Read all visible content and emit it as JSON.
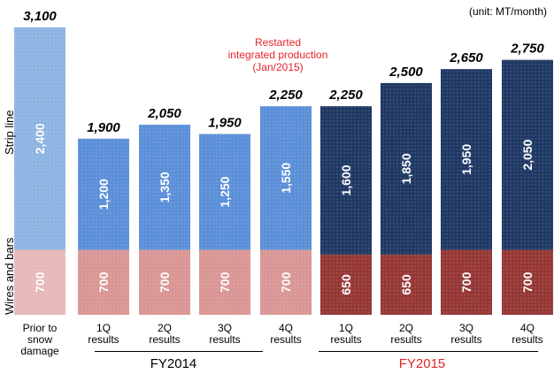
{
  "unit_label": "(unit: MT/month)",
  "annotation": [
    "Restarted",
    "integrated production",
    "(Jan/2015)"
  ],
  "y_labels": {
    "upper": "Strip line",
    "lower": "Wires and bars"
  },
  "groups": [
    {
      "label": "FY2014",
      "color": "#000000"
    },
    {
      "label": "FY2015",
      "color": "#e8222b"
    }
  ],
  "colors": {
    "strip_prior": "#8db4e2",
    "strip_fy2014": "#5b8fd8",
    "strip_fy2015": "#1f3864",
    "wires_prior": "#e6b8b7",
    "wires_fy2014": "#d99694",
    "wires_fy2015": "#953735"
  },
  "chart_data": {
    "type": "bar",
    "stacked": true,
    "categories": [
      "Prior to snow damage",
      "1Q results",
      "2Q results",
      "3Q results",
      "4Q results",
      "1Q results",
      "2Q results",
      "3Q results",
      "4Q results"
    ],
    "category_lines": [
      [
        "Prior to",
        "snow",
        "damage"
      ],
      [
        "1Q",
        "results"
      ],
      [
        "2Q",
        "results"
      ],
      [
        "3Q",
        "results"
      ],
      [
        "4Q",
        "results"
      ],
      [
        "1Q",
        "results"
      ],
      [
        "2Q",
        "results"
      ],
      [
        "3Q",
        "results"
      ],
      [
        "4Q",
        "results"
      ]
    ],
    "series": [
      {
        "name": "Wires and bars",
        "values": [
          700,
          700,
          700,
          700,
          700,
          650,
          650,
          700,
          700
        ]
      },
      {
        "name": "Strip line",
        "values": [
          2400,
          1200,
          1350,
          1250,
          1550,
          1600,
          1850,
          1950,
          2050
        ]
      }
    ],
    "value_labels": [
      "700",
      "700",
      "700",
      "700",
      "700",
      "650",
      "650",
      "700",
      "700"
    ],
    "strip_labels": [
      "2,400",
      "1,200",
      "1,350",
      "1,250",
      "1,550",
      "1,600",
      "1,850",
      "1,950",
      "2,050"
    ],
    "totals": [
      3100,
      1900,
      2050,
      1950,
      2250,
      2250,
      2500,
      2650,
      2750
    ],
    "total_labels": [
      "3,100",
      "1,900",
      "2,050",
      "1,950",
      "2,250",
      "2,250",
      "2,500",
      "2,650",
      "2,750"
    ],
    "ylim": [
      0,
      3100
    ]
  }
}
